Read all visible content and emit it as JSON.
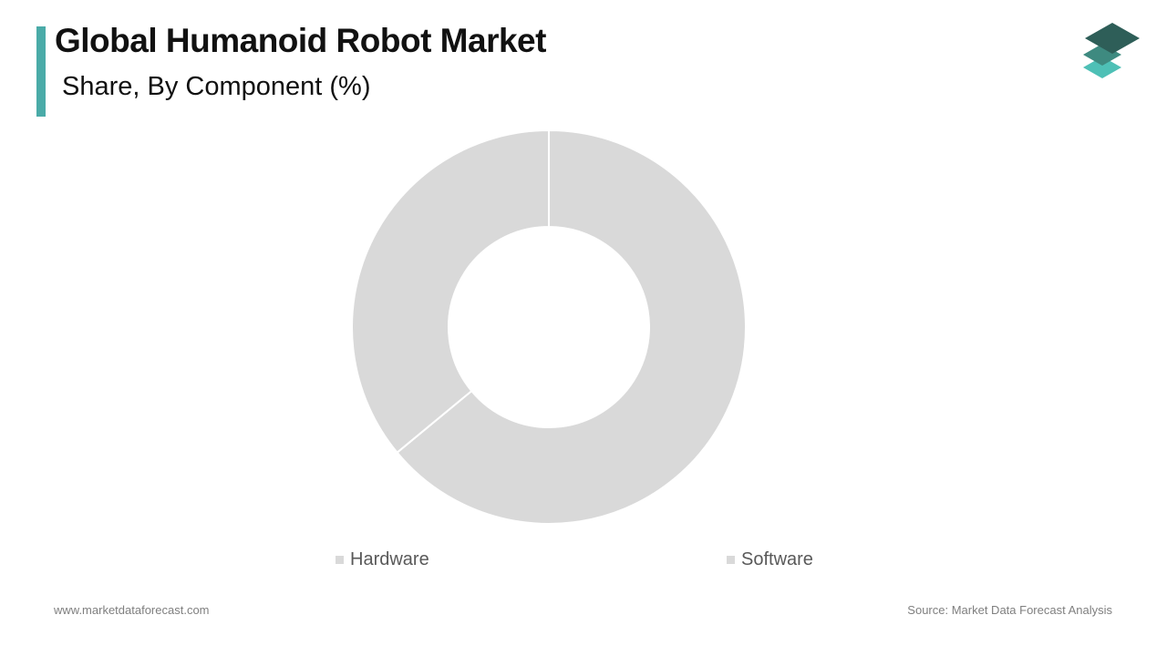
{
  "header": {
    "title": "Global Humanoid Robot Market",
    "subtitle": "Share, By Component (%)",
    "accent_color": "#4AABA8"
  },
  "logo": {
    "icon": "stacked-layers-logo-icon",
    "colors": [
      "#2E5E58",
      "#3E8A80",
      "#4EC0B6"
    ]
  },
  "chart_data": {
    "type": "donut",
    "title": "Global Humanoid Robot Market",
    "subtitle": "Share, By Component (%)",
    "categories": [
      "Hardware",
      "Software"
    ],
    "values": [
      64,
      36
    ],
    "colors": [
      "#D9D9D9",
      "#D9D9D9"
    ],
    "legend_position": "bottom",
    "data_labels": false
  },
  "legend": {
    "items": [
      {
        "label": "Hardware",
        "color": "#D9D9D9"
      },
      {
        "label": "Software",
        "color": "#D9D9D9"
      }
    ]
  },
  "footer": {
    "website": "www.marketdataforecast.com",
    "source": "Source: Market Data Forecast Analysis"
  }
}
